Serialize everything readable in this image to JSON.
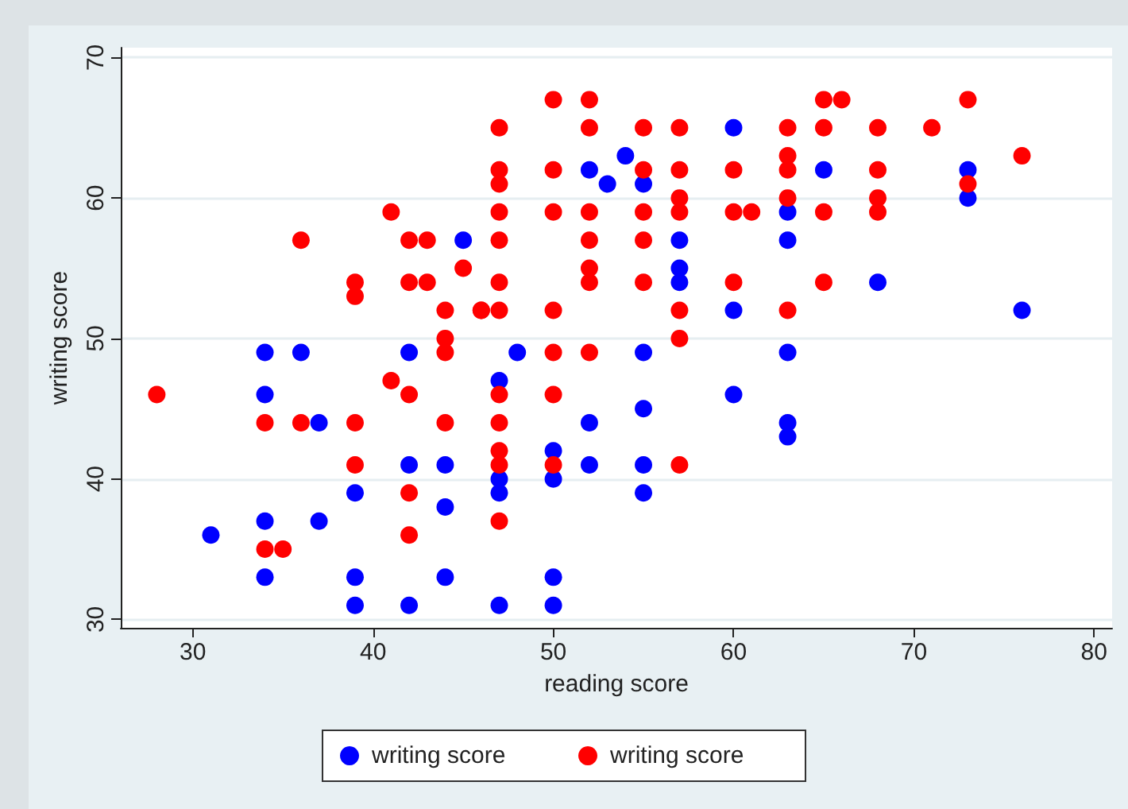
{
  "chart_data": {
    "type": "scatter",
    "xlabel": "reading score",
    "ylabel": "writing score",
    "xlim": [
      26,
      81
    ],
    "ylim": [
      29.4,
      70.7
    ],
    "xticks": [
      30,
      40,
      50,
      60,
      70,
      80
    ],
    "yticks": [
      30,
      40,
      50,
      60,
      70
    ],
    "grid": "y",
    "legend": "bottom",
    "marker": "circle",
    "series": [
      {
        "name": "writing score",
        "color": "#0000ff",
        "x": [
          31,
          34,
          34,
          34,
          34,
          36,
          37,
          37,
          39,
          39,
          39,
          42,
          42,
          42,
          44,
          44,
          44,
          45,
          47,
          47,
          47,
          47,
          48,
          50,
          50,
          50,
          50,
          52,
          52,
          52,
          53,
          54,
          55,
          55,
          55,
          55,
          55,
          57,
          57,
          57,
          60,
          60,
          60,
          63,
          63,
          63,
          63,
          63,
          65,
          68,
          73,
          73,
          76
        ],
        "values": [
          36,
          49,
          46,
          37,
          33,
          49,
          44,
          37,
          39,
          33,
          31,
          49,
          41,
          31,
          41,
          38,
          33,
          57,
          47,
          40,
          39,
          31,
          49,
          42,
          40,
          33,
          31,
          62,
          44,
          41,
          61,
          63,
          61,
          49,
          45,
          41,
          39,
          57,
          55,
          54,
          65,
          52,
          46,
          59,
          57,
          49,
          44,
          43,
          62,
          54,
          62,
          60,
          52
        ]
      },
      {
        "name": "writing score",
        "color": "#ff0000",
        "x": [
          28,
          34,
          34,
          35,
          36,
          36,
          39,
          39,
          39,
          39,
          41,
          41,
          42,
          42,
          42,
          42,
          42,
          43,
          43,
          44,
          44,
          44,
          44,
          45,
          46,
          46,
          47,
          47,
          47,
          47,
          47,
          47,
          47,
          47,
          47,
          47,
          47,
          47,
          50,
          50,
          50,
          50,
          50,
          50,
          50,
          52,
          52,
          52,
          52,
          52,
          52,
          52,
          55,
          55,
          55,
          55,
          55,
          57,
          57,
          57,
          57,
          57,
          57,
          57,
          60,
          60,
          60,
          61,
          63,
          63,
          63,
          63,
          63,
          65,
          65,
          65,
          65,
          66,
          68,
          68,
          68,
          68,
          71,
          73,
          73,
          76
        ],
        "values": [
          46,
          44,
          35,
          35,
          57,
          44,
          54,
          53,
          44,
          41,
          59,
          47,
          57,
          54,
          46,
          39,
          36,
          57,
          54,
          52,
          50,
          49,
          44,
          55,
          52,
          52,
          65,
          62,
          61,
          59,
          57,
          54,
          52,
          46,
          44,
          42,
          41,
          37,
          67,
          62,
          59,
          52,
          49,
          46,
          41,
          67,
          65,
          59,
          57,
          55,
          54,
          49,
          65,
          62,
          59,
          57,
          54,
          65,
          62,
          60,
          59,
          52,
          50,
          41,
          62,
          59,
          54,
          59,
          65,
          63,
          62,
          60,
          52,
          67,
          65,
          59,
          54,
          67,
          65,
          62,
          60,
          59,
          65,
          67,
          61,
          63
        ]
      }
    ]
  }
}
